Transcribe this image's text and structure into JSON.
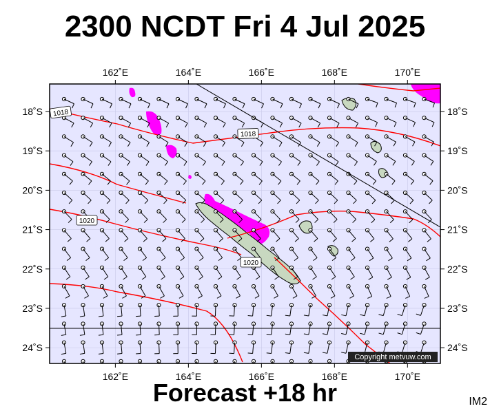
{
  "header": {
    "title": "2300 NCDT Fri 4 Jul 2025"
  },
  "footer": {
    "subtitle": "Forecast +18 hr",
    "panel_code": "IM2"
  },
  "map": {
    "lon_range": [
      160.2,
      170.9
    ],
    "lat_range": [
      -24.4,
      -17.3
    ],
    "lon_ticks": [
      "162˚E",
      "164˚E",
      "166˚E",
      "168˚E",
      "170˚E"
    ],
    "lon_tick_values": [
      162,
      164,
      166,
      168,
      170
    ],
    "lat_ticks": [
      "18˚S",
      "19˚S",
      "20˚S",
      "21˚S",
      "22˚S",
      "23˚S",
      "24˚S"
    ],
    "lat_tick_values": [
      -18,
      -19,
      -20,
      -21,
      -22,
      -23,
      -24
    ],
    "isobar_labels": [
      "1018",
      "1018",
      "1020",
      "1020"
    ],
    "copyright": "Copyright metvuw.com",
    "colors": {
      "background": "#e6e6ff",
      "isobar": "#ff0000",
      "rain": "#ff00ff",
      "land": "#c8d8c0",
      "coast": "#000000"
    }
  }
}
